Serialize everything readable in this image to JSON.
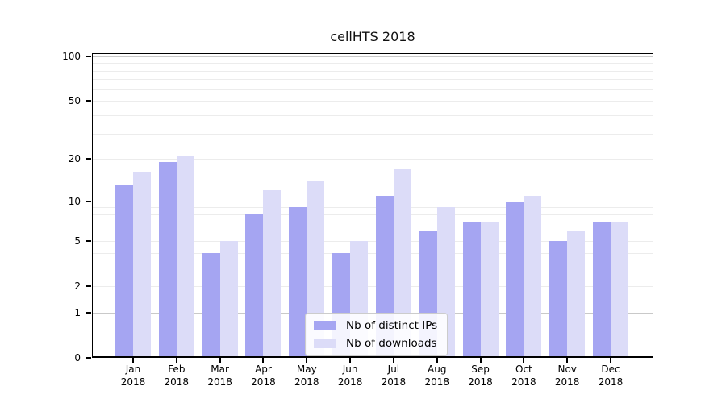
{
  "chart_data": {
    "type": "bar",
    "title": "cellHTS 2018",
    "categories": [
      "Jan 2018",
      "Feb 2018",
      "Mar 2018",
      "Apr 2018",
      "May 2018",
      "Jun 2018",
      "Jul 2018",
      "Aug 2018",
      "Sep 2018",
      "Oct 2018",
      "Nov 2018",
      "Dec 2018"
    ],
    "series": [
      {
        "name": "Nb of distinct IPs",
        "color": "#a5a5f2",
        "values": [
          13,
          19,
          4,
          8,
          9,
          4,
          11,
          6,
          7,
          10,
          5,
          7
        ]
      },
      {
        "name": "Nb of downloads",
        "color": "#dcdcf8",
        "values": [
          16,
          21,
          5,
          12,
          14,
          5,
          17,
          9,
          7,
          11,
          6,
          7
        ]
      }
    ],
    "xlabel": "",
    "ylabel": "",
    "y_scale": "log1p",
    "y_ticks": [
      0,
      1,
      2,
      5,
      10,
      20,
      50,
      100
    ],
    "y_major_gridlines": [
      1,
      10,
      100
    ],
    "y_minor_gridlines": [
      2,
      3,
      4,
      5,
      6,
      7,
      8,
      9,
      20,
      30,
      40,
      50,
      60,
      70,
      80,
      90
    ],
    "ylim": [
      0,
      105
    ],
    "grid": true,
    "legend_position": "lower center"
  },
  "colors": {
    "bar_distinct_ips": "#a5a5f2",
    "bar_downloads": "#dcdcf8",
    "grid_major": "#c9c9c9",
    "grid_minor": "#ececec",
    "axis": "#000000",
    "legend_border": "#cccccc"
  }
}
